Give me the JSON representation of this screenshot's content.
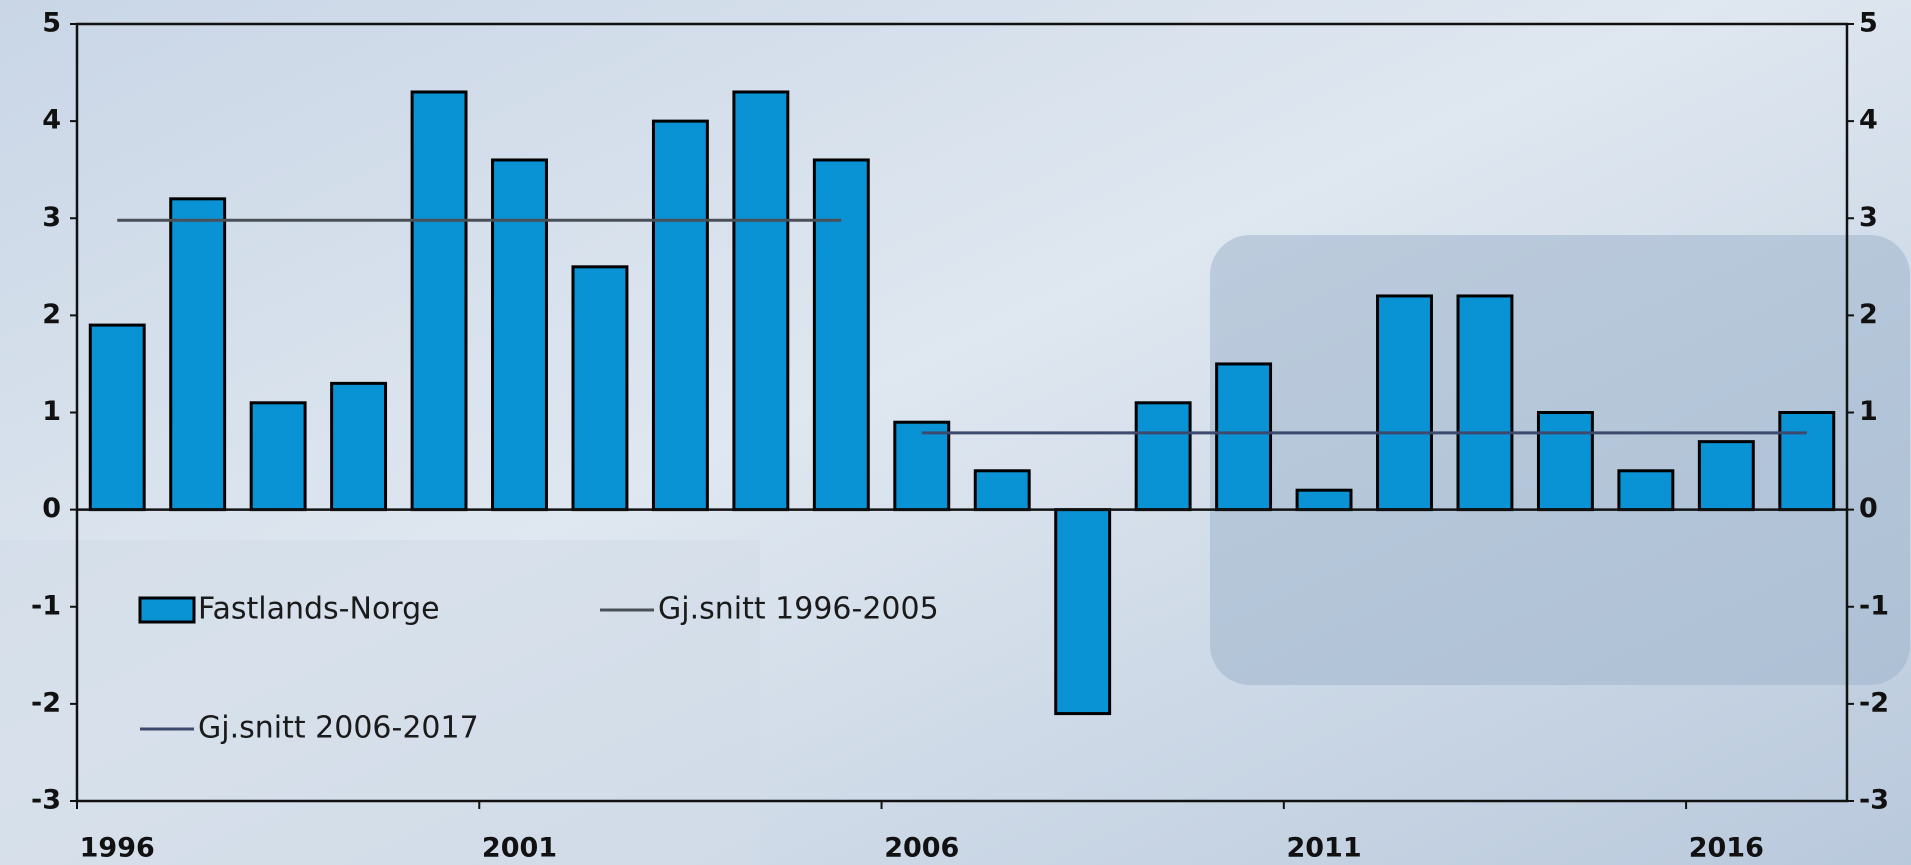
{
  "chart_data": {
    "type": "bar",
    "categories": [
      "1996",
      null,
      null,
      null,
      null,
      "2001",
      null,
      null,
      null,
      null,
      "2006",
      null,
      null,
      null,
      null,
      "2011",
      null,
      null,
      null,
      null,
      "2016",
      null
    ],
    "series": [
      {
        "name": "Fastlands-Norge",
        "type": "bar",
        "color": "#0a93d4",
        "values": [
          1.9,
          3.2,
          1.1,
          1.3,
          4.3,
          3.6,
          2.5,
          4.0,
          4.3,
          3.6,
          0.9,
          0.4,
          -2.1,
          1.1,
          1.5,
          0.2,
          2.2,
          2.2,
          1.0,
          0.4,
          0.7,
          1.0
        ]
      },
      {
        "name": "Gj.snitt 1996-2005",
        "type": "line",
        "color": "#4a5058",
        "values": [
          2.98,
          2.98,
          2.98,
          2.98,
          2.98,
          2.98,
          2.98,
          2.98,
          2.98,
          2.98,
          null,
          null,
          null,
          null,
          null,
          null,
          null,
          null,
          null,
          null,
          null,
          null
        ]
      },
      {
        "name": "Gj.snitt 2006-2017",
        "type": "line",
        "color": "#3d4a6e",
        "values": [
          null,
          null,
          null,
          null,
          null,
          null,
          null,
          null,
          null,
          null,
          0.79,
          0.79,
          0.79,
          0.79,
          0.79,
          0.79,
          0.79,
          0.79,
          0.79,
          0.79,
          0.79,
          0.79
        ]
      }
    ],
    "ylim": [
      -3,
      5
    ],
    "yticks": [
      -3,
      -2,
      -1,
      0,
      1,
      2,
      3,
      4,
      5
    ],
    "y2lim": [
      -3,
      5
    ],
    "y2ticks": [
      -3,
      -2,
      -1,
      0,
      1,
      2,
      3,
      4,
      5
    ]
  }
}
